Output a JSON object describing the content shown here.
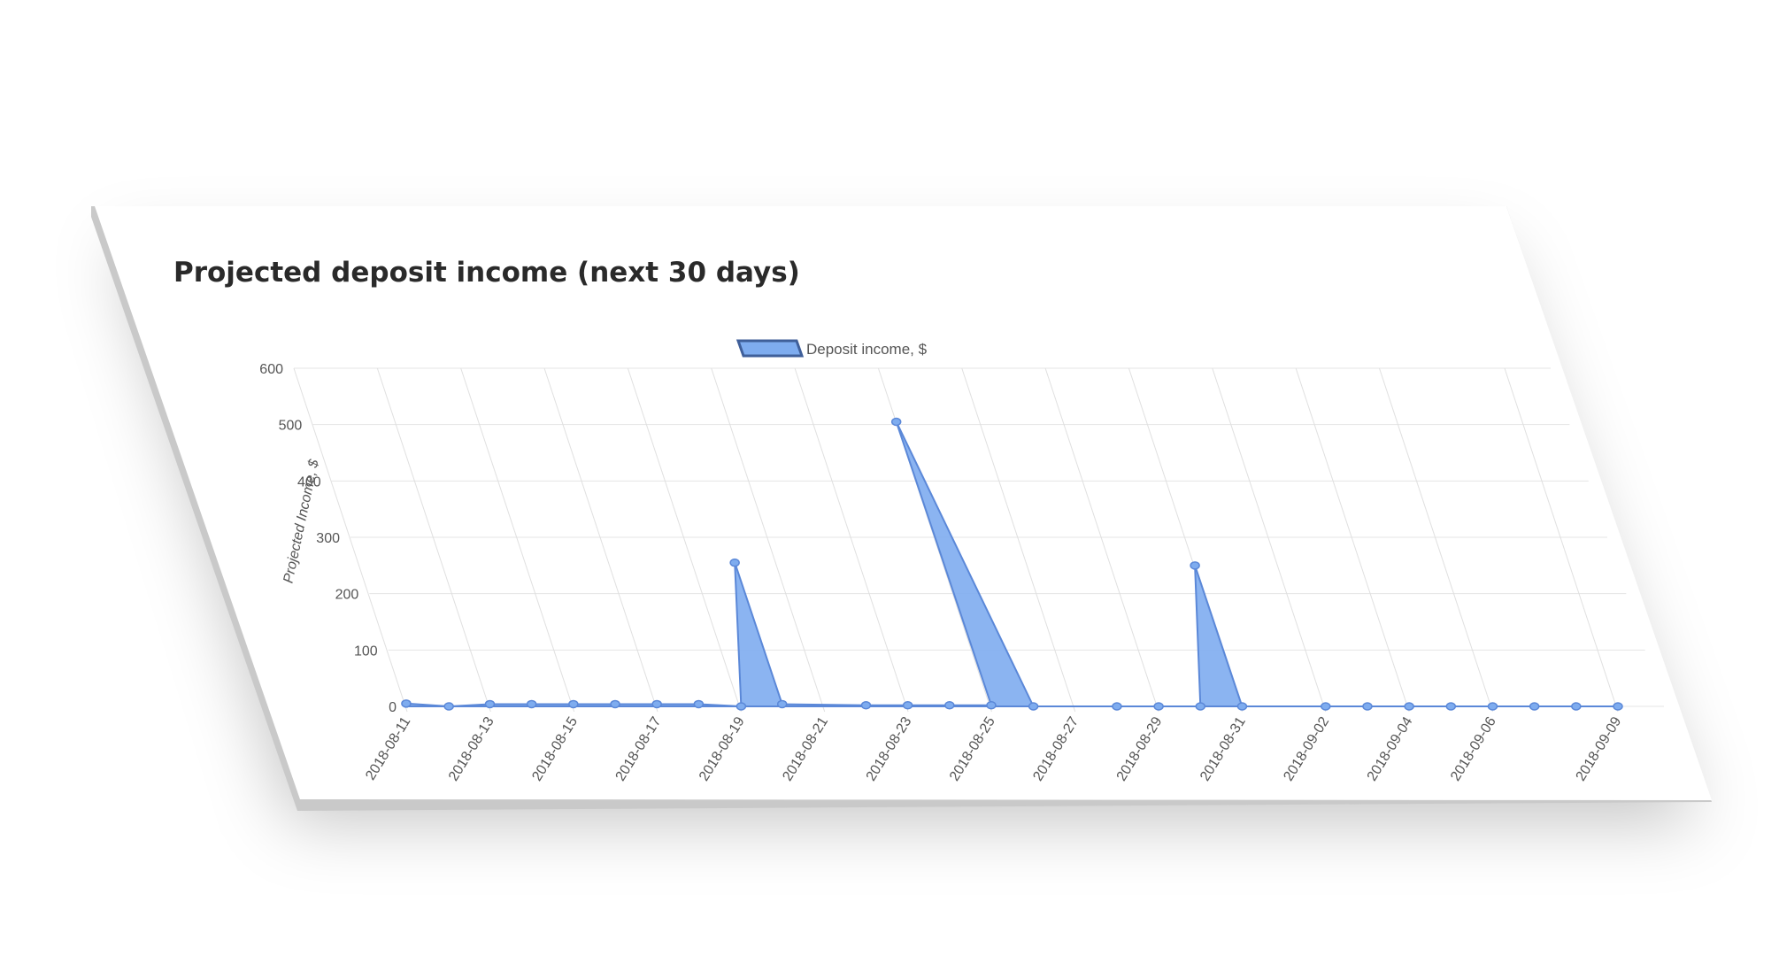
{
  "title": "Projected deposit income (next 30 days)",
  "colors": {
    "fill": "#7eacef",
    "line": "#5b88d8",
    "legend_border": "#3f5f9a"
  },
  "chart_data": {
    "type": "area",
    "title": "",
    "xlabel": "",
    "ylabel": "Projected Income, $",
    "legend": [
      "Deposit income, $"
    ],
    "legend_position": "top-center",
    "grid": true,
    "ylim": [
      0,
      600
    ],
    "yticks": [
      0,
      100,
      200,
      300,
      400,
      500,
      600
    ],
    "xticks": [
      "2018-08-11",
      "2018-08-13",
      "2018-08-15",
      "2018-08-17",
      "2018-08-19",
      "2018-08-21",
      "2018-08-23",
      "2018-08-25",
      "2018-08-27",
      "2018-08-29",
      "2018-08-31",
      "2018-09-02",
      "2018-09-04",
      "2018-09-06",
      "2018-09-09"
    ],
    "series": [
      {
        "name": "Deposit income, $",
        "points": [
          {
            "x": "2018-08-11",
            "y": 5
          },
          {
            "x": "2018-08-12",
            "y": 0
          },
          {
            "x": "2018-08-13",
            "y": 4
          },
          {
            "x": "2018-08-14",
            "y": 4
          },
          {
            "x": "2018-08-15",
            "y": 4
          },
          {
            "x": "2018-08-16",
            "y": 4
          },
          {
            "x": "2018-08-17",
            "y": 4
          },
          {
            "x": "2018-08-18",
            "y": 4
          },
          {
            "x": "2018-08-19",
            "y": 0
          },
          {
            "x": "2018-08-20",
            "y": 255
          },
          {
            "x": "2018-08-20",
            "y": 4
          },
          {
            "x": "2018-08-22",
            "y": 2
          },
          {
            "x": "2018-08-23",
            "y": 2
          },
          {
            "x": "2018-08-24",
            "y": 2
          },
          {
            "x": "2018-08-25",
            "y": 2
          },
          {
            "x": "2018-08-25",
            "y": 505
          },
          {
            "x": "2018-08-26",
            "y": 0
          },
          {
            "x": "2018-08-28",
            "y": 0
          },
          {
            "x": "2018-08-29",
            "y": 0
          },
          {
            "x": "2018-08-30",
            "y": 0
          },
          {
            "x": "2018-08-31",
            "y": 250
          },
          {
            "x": "2018-08-31",
            "y": 0
          },
          {
            "x": "2018-09-02",
            "y": 0
          },
          {
            "x": "2018-09-03",
            "y": 0
          },
          {
            "x": "2018-09-04",
            "y": 0
          },
          {
            "x": "2018-09-05",
            "y": 0
          },
          {
            "x": "2018-09-06",
            "y": 0
          },
          {
            "x": "2018-09-07",
            "y": 0
          },
          {
            "x": "2018-09-08",
            "y": 0
          },
          {
            "x": "2018-09-09",
            "y": 0
          }
        ]
      }
    ]
  }
}
